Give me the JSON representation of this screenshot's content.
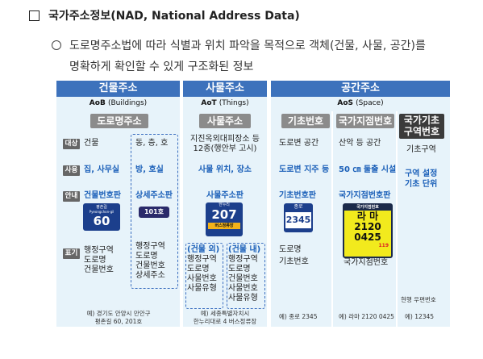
{
  "title": "국가주소정보(NAD, National Address Data)",
  "intro": {
    "line1": "도로명주소법에 따라 식별과 위치 파악을 목적으로 객체(건물, 사물, 공간)를",
    "line2": "명확하게 확인할 수 있게 구조화된 정보"
  },
  "colors": {
    "header_blue": "#3d72bc",
    "header_dark": "#3b3b3b",
    "panel_bg": "#e7f3fa",
    "highlight": "#1a5fb8"
  },
  "columns": {
    "building": {
      "header": "건물주소",
      "sub_code": "AoB",
      "sub_en": "(Buildings)",
      "category": "도로명주소",
      "left": {
        "target": "건물",
        "use": "집, 사무실",
        "guide": "건물번호판",
        "notation": [
          "행정구역",
          "도로명",
          "건물번호"
        ]
      },
      "right": {
        "target": "동, 층, 호",
        "use": "방, 호실",
        "guide": "상세주소판",
        "notation": [
          "행정구역",
          "도로명",
          "건물번호",
          "상세주소"
        ]
      },
      "plate1": {
        "small": "평촌길",
        "small_en": "Pyeongchon-gil",
        "number": "60"
      },
      "plate2": {
        "number": "101호"
      },
      "example": [
        "예) 경기도 안양시 만안구",
        "평촌길 60, 201호"
      ]
    },
    "object": {
      "header": "사물주소",
      "sub_code": "AoT",
      "sub_en": "(Things)",
      "category": "사물주소",
      "target": [
        "지진옥외대피장소 등",
        "12종(행안부 고시)"
      ],
      "use": "사물 위치, 장소",
      "guide": "사물주소판",
      "plate": {
        "top": "한누리",
        "number": "207",
        "bottom": "버스정류장"
      },
      "outdoor": {
        "heading": "(건물 외)",
        "items": [
          "행정구역",
          "도로명",
          "사물번호",
          "사물유형"
        ]
      },
      "indoor": {
        "heading": "(건물 내)",
        "items": [
          "행정구역",
          "도로명",
          "건물번호",
          "사물번호",
          "사물유형"
        ]
      },
      "example": [
        "예) 세종특별자치시",
        "한누리대로 4 버스정류장"
      ]
    },
    "space": {
      "header": "공간주소",
      "sub_code": "AoS",
      "sub_en": "(Space)",
      "basic": {
        "category": "기초번호",
        "target": "도로변 공간",
        "use": "도로변 지주 등",
        "guide": "기초번호판",
        "plate": {
          "top": "종로",
          "number": "2345"
        },
        "notation": [
          "도로명",
          "기초번호"
        ],
        "example": "예) 종로 2345"
      },
      "national": {
        "category": "국가지점번호",
        "target": "산악 등 공간",
        "use": "50 ㎝ 둘출 시설",
        "guide": "국가지점번호판",
        "plate": {
          "title": "국가지점번호",
          "line1": "라 마",
          "line2": "2120",
          "line3": "0425",
          "foot": "119"
        },
        "notation": [
          "국가지점번호"
        ],
        "example": "예) 라마 2120 0425"
      },
      "area": {
        "category": [
          "국가기초",
          "구역번호"
        ],
        "target": "기초구역",
        "use": [
          "구역 설정",
          "기초 단위"
        ],
        "notation": "현행 우편번호",
        "example": "예) 12345"
      }
    },
    "row_labels": {
      "target": "대상",
      "use": "사용",
      "guide": "안내",
      "notation": "표기"
    }
  }
}
